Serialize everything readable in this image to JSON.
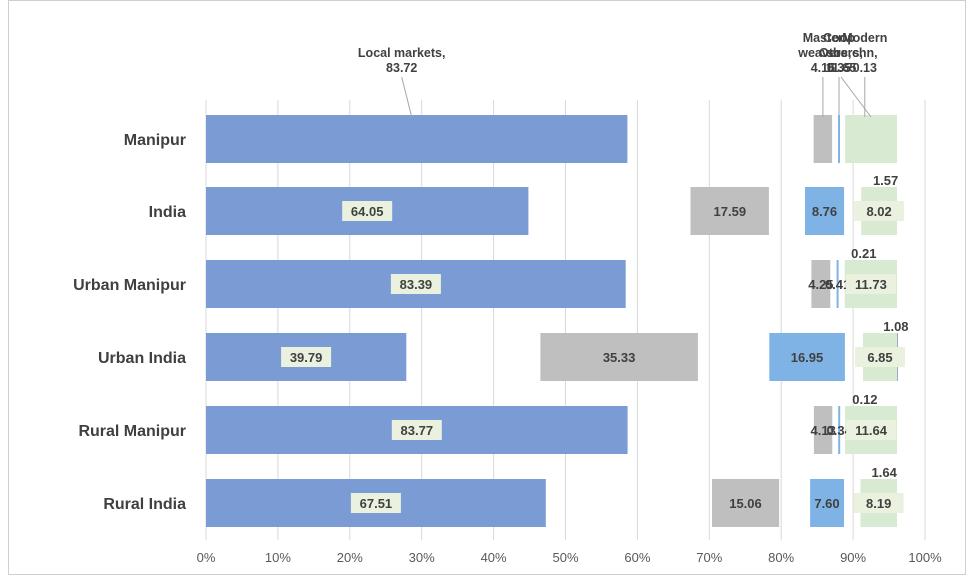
{
  "chart_data": {
    "type": "bar",
    "orientation": "horizontal",
    "stacking": "stacked-100",
    "categories": [
      "Manipur",
      "India",
      "Urban  Manipur",
      "Urban India",
      "Rural  Manipur",
      "Rural India"
    ],
    "series": [
      {
        "name": "Local markets",
        "color": "#7b9bd5",
        "values": [
          83.72,
          64.05,
          83.39,
          39.79,
          83.77,
          67.51
        ]
      },
      {
        "name": "Master weavers",
        "color": "#bfbfbf",
        "values": [
          4.15,
          17.59,
          4.25,
          35.33,
          4.13,
          15.06
        ]
      },
      {
        "name": "Coop soc",
        "color": "#7fb3e6",
        "values": [
          0.35,
          8.76,
          0.41,
          16.95,
          0.34,
          7.6
        ]
      },
      {
        "name": "Modern chn",
        "color": "#5b73a6",
        "values": [
          0.13,
          1.57,
          0.21,
          1.08,
          0.12,
          1.64
        ]
      },
      {
        "name": "Others",
        "color": "#d9ead3",
        "values": [
          11.65,
          8.02,
          11.73,
          6.85,
          11.64,
          8.19
        ]
      }
    ],
    "data_labels": [
      [
        "",
        "64.05",
        "83.39",
        "39.79",
        "83.77",
        "67.51"
      ],
      [
        "",
        "17.59",
        "4.25",
        "35.33",
        "4.13",
        "15.06"
      ],
      [
        "",
        "8.76",
        "0.41",
        "16.95",
        "0.34",
        "7.60"
      ],
      [
        "",
        "1.57",
        "0.21",
        "1.08",
        "0.12",
        "1.64"
      ],
      [
        "",
        "8.02",
        "11.73",
        "6.85",
        "11.64",
        "8.19"
      ]
    ],
    "callouts": [
      {
        "series": 0,
        "lines": [
          "Local markets,",
          "83.72"
        ]
      },
      {
        "series": 1,
        "lines": [
          "Master",
          "weavers",
          "4.15"
        ]
      },
      {
        "series": 2,
        "lines": [
          "Coop",
          "soc,",
          "0.35"
        ]
      },
      {
        "series": 3,
        "lines": [
          "Modern",
          "chn,",
          "0.13"
        ]
      },
      {
        "series": 4,
        "lines": [
          "Others,",
          "11.65"
        ]
      }
    ],
    "x_ticks": [
      "0%",
      "10%",
      "20%",
      "30%",
      "40%",
      "50%",
      "60%",
      "70%",
      "80%",
      "90%",
      "100%"
    ],
    "xlim": [
      0,
      100
    ],
    "grid": true,
    "title": "",
    "xlabel": "",
    "ylabel": ""
  }
}
